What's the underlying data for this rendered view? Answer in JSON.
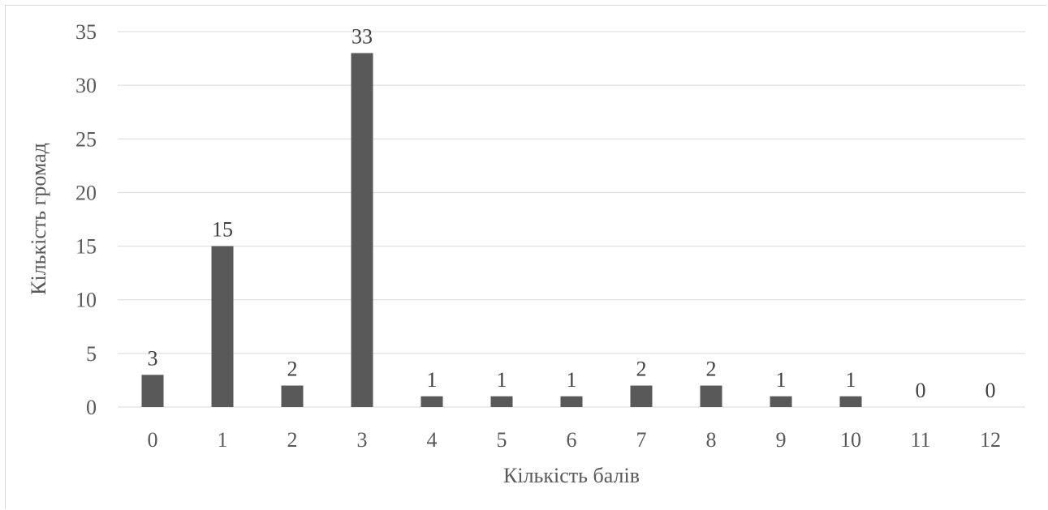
{
  "chart_data": {
    "type": "bar",
    "categories": [
      "0",
      "1",
      "2",
      "3",
      "4",
      "5",
      "6",
      "7",
      "8",
      "9",
      "10",
      "11",
      "12"
    ],
    "values": [
      3,
      15,
      2,
      33,
      1,
      1,
      1,
      2,
      2,
      1,
      1,
      0,
      0
    ],
    "title": "",
    "xlabel": "Кількість балів",
    "ylabel": "Кількість громад",
    "ylim": [
      0,
      35
    ],
    "yticks": [
      0,
      5,
      10,
      15,
      20,
      25,
      30,
      35
    ],
    "grid": true,
    "legend": "none",
    "data_labels": true,
    "bar_color": "#595959",
    "grid_color": "#d9d9d9"
  }
}
